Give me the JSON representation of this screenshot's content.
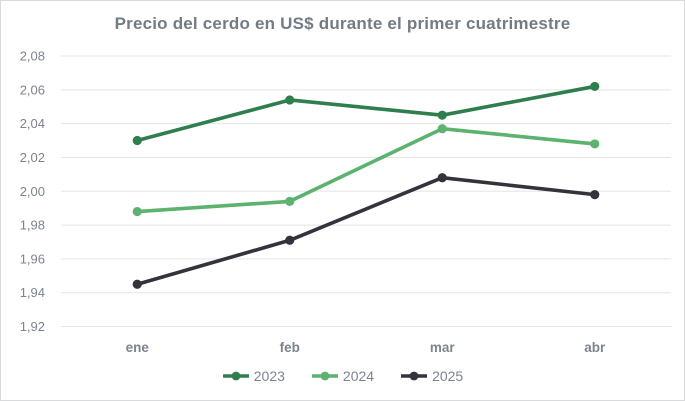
{
  "chart_data": {
    "type": "line",
    "title": "Precio del cerdo en US$ durante el primer cuatrimestre",
    "xlabel": "",
    "ylabel": "",
    "categories": [
      "ene",
      "feb",
      "mar",
      "abr"
    ],
    "series": [
      {
        "name": "2023",
        "color": "#2f7e4e",
        "values": [
          2.03,
          2.054,
          2.045,
          2.062
        ]
      },
      {
        "name": "2024",
        "color": "#5db26f",
        "values": [
          1.988,
          1.994,
          2.037,
          2.028
        ]
      },
      {
        "name": "2025",
        "color": "#33333b",
        "values": [
          1.945,
          1.971,
          2.008,
          1.998
        ]
      }
    ],
    "ylim": [
      1.92,
      2.08
    ],
    "y_tick_step": 0.02,
    "y_tick_labels": [
      "1,92",
      "1,94",
      "1,96",
      "1,98",
      "2,00",
      "2,02",
      "2,04",
      "2,06",
      "2,08"
    ],
    "grid": true,
    "legend_position": "bottom"
  },
  "styles": {
    "grid_color": "#e3e6e8",
    "axis_text_color": "#7d848e",
    "title_color": "#737b84",
    "border_color": "#d8dadc",
    "background": "#ffffff"
  }
}
